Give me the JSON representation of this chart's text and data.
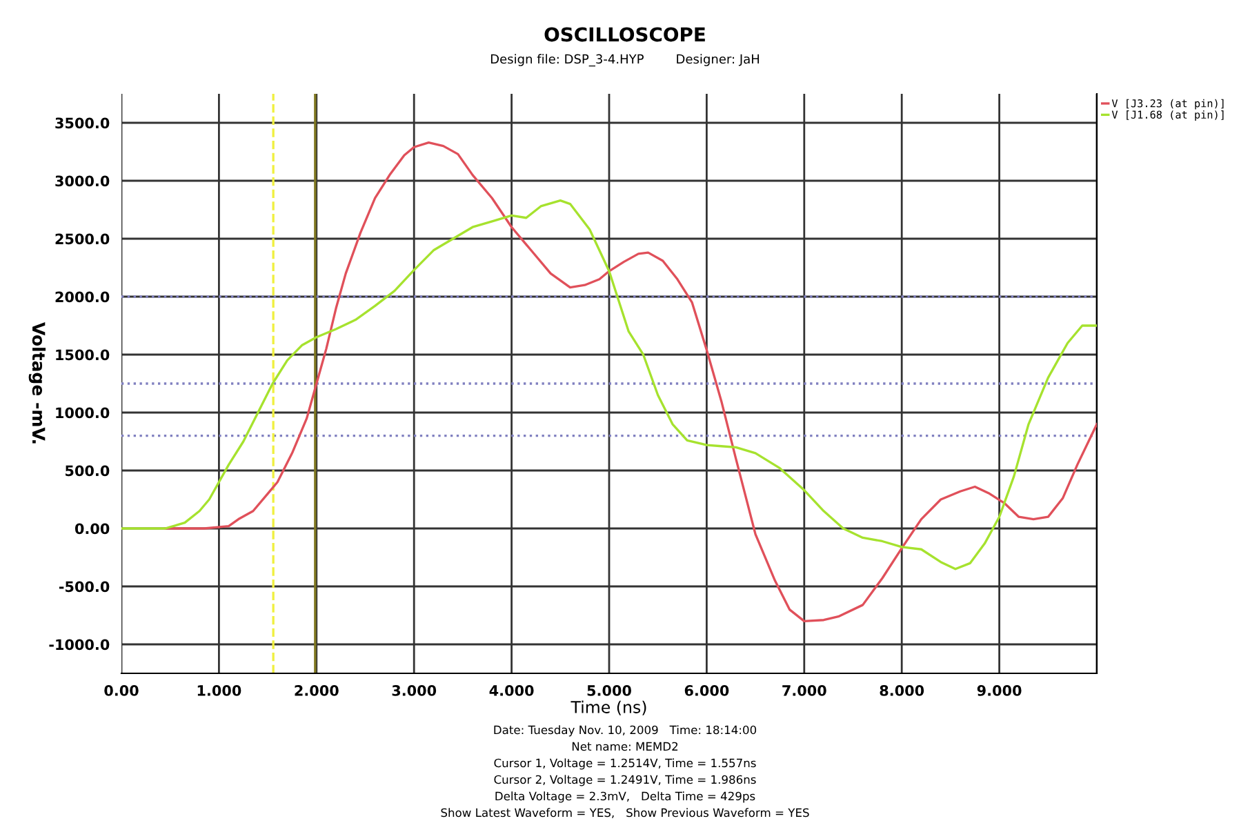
{
  "chart_data": {
    "type": "line",
    "title": "OSCILLOSCOPE",
    "subtitle": "Design file: DSP_3-4.HYP        Designer: JaH",
    "xlabel": "Time (ns)",
    "ylabel": "Voltage -mV.",
    "xlim": [
      0,
      10
    ],
    "ylim": [
      -1250,
      3750
    ],
    "xticks": [
      {
        "value": 0,
        "label": "0.00"
      },
      {
        "value": 1,
        "label": "1.000"
      },
      {
        "value": 2,
        "label": "2.000"
      },
      {
        "value": 3,
        "label": "3.000"
      },
      {
        "value": 4,
        "label": "4.000"
      },
      {
        "value": 5,
        "label": "5.000"
      },
      {
        "value": 6,
        "label": "6.000"
      },
      {
        "value": 7,
        "label": "7.000"
      },
      {
        "value": 8,
        "label": "8.000"
      },
      {
        "value": 9,
        "label": "9.000"
      },
      {
        "value": 10,
        "label": null
      }
    ],
    "yticks": [
      {
        "value": -1000,
        "label": "-1000.0"
      },
      {
        "value": -500,
        "label": "-500.0"
      },
      {
        "value": 0,
        "label": "0.00"
      },
      {
        "value": 500,
        "label": "500.0"
      },
      {
        "value": 1000,
        "label": "1000.0"
      },
      {
        "value": 1500,
        "label": "1500.0"
      },
      {
        "value": 2000,
        "label": "2000.0"
      },
      {
        "value": 2500,
        "label": "2500.0"
      },
      {
        "value": 3000,
        "label": "3000.0"
      },
      {
        "value": 3500,
        "label": "3500.0"
      }
    ],
    "grid": true,
    "legend": "top right",
    "series": [
      {
        "name": "V [J3.23 (at pin)]",
        "color": "#e0505a",
        "x": [
          0.45,
          0.85,
          1.1,
          1.2,
          1.35,
          1.5,
          1.6,
          1.75,
          1.9,
          2.0,
          2.1,
          2.2,
          2.3,
          2.45,
          2.6,
          2.75,
          2.9,
          3.0,
          3.15,
          3.3,
          3.45,
          3.6,
          3.8,
          4.0,
          4.2,
          4.4,
          4.6,
          4.75,
          4.9,
          5.0,
          5.15,
          5.3,
          5.4,
          5.55,
          5.7,
          5.85,
          6.0,
          6.15,
          6.3,
          6.5,
          6.7,
          6.85,
          7.0,
          7.2,
          7.35,
          7.6,
          7.8,
          8.0,
          8.2,
          8.4,
          8.6,
          8.75,
          8.9,
          9.05,
          9.2,
          9.35,
          9.5,
          9.65,
          9.8,
          10.0
        ],
        "values": [
          0,
          0,
          20,
          80,
          150,
          300,
          400,
          650,
          950,
          1250,
          1550,
          1900,
          2200,
          2550,
          2850,
          3050,
          3220,
          3290,
          3330,
          3300,
          3230,
          3050,
          2850,
          2600,
          2400,
          2200,
          2080,
          2100,
          2150,
          2220,
          2300,
          2370,
          2380,
          2310,
          2150,
          1950,
          1540,
          1100,
          600,
          -50,
          -450,
          -700,
          -800,
          -790,
          -760,
          -660,
          -430,
          -170,
          80,
          250,
          320,
          360,
          300,
          220,
          100,
          80,
          100,
          260,
          550,
          900
        ]
      },
      {
        "name": "V [J1.68 (at pin)]",
        "color": "#a6e22e",
        "x": [
          0,
          0.45,
          0.65,
          0.8,
          0.9,
          1.0,
          1.1,
          1.25,
          1.4,
          1.55,
          1.7,
          1.85,
          2.0,
          2.2,
          2.4,
          2.6,
          2.8,
          3.0,
          3.2,
          3.4,
          3.6,
          3.8,
          4.0,
          4.15,
          4.3,
          4.5,
          4.6,
          4.8,
          5.0,
          5.2,
          5.35,
          5.5,
          5.65,
          5.8,
          6.0,
          6.15,
          6.3,
          6.5,
          6.75,
          7.0,
          7.2,
          7.4,
          7.6,
          7.8,
          8.0,
          8.2,
          8.4,
          8.55,
          8.7,
          8.85,
          9.0,
          9.15,
          9.3,
          9.5,
          9.7,
          9.85,
          10.0
        ],
        "values": [
          0,
          0,
          50,
          150,
          250,
          400,
          550,
          750,
          1000,
          1250,
          1450,
          1580,
          1650,
          1720,
          1800,
          1920,
          2050,
          2230,
          2400,
          2500,
          2600,
          2650,
          2700,
          2680,
          2780,
          2830,
          2800,
          2580,
          2220,
          1700,
          1500,
          1150,
          900,
          760,
          720,
          710,
          700,
          650,
          520,
          330,
          150,
          0,
          -80,
          -110,
          -160,
          -180,
          -290,
          -350,
          -300,
          -130,
          100,
          450,
          900,
          1300,
          1600,
          1750,
          1750
        ]
      }
    ],
    "ref_lines": [
      {
        "axis": "y",
        "value": 2000,
        "color": "#8080c0",
        "line_style": "dotted"
      },
      {
        "axis": "y",
        "value": 1250,
        "color": "#8080c0",
        "line_style": "dotted"
      },
      {
        "axis": "y",
        "value": 800,
        "color": "#8080c0",
        "line_style": "dotted"
      },
      {
        "axis": "x",
        "value": 1.557,
        "color": "#f0f040",
        "line_style": "dashed"
      },
      {
        "axis": "x",
        "value": 1.986,
        "color": "#807820",
        "line_style": "solid"
      }
    ],
    "annotations": [
      "Date: Tuesday Nov. 10, 2009   Time: 18:14:00",
      "Net name: MEMD2",
      "Cursor 1, Voltage = 1.2514V, Time = 1.557ns",
      "Cursor 2, Voltage = 1.2491V, Time = 1.986ns",
      "Delta Voltage = 2.3mV,   Delta Time = 429ps",
      "Show Latest Waveform = YES,   Show Previous Waveform = YES"
    ]
  }
}
